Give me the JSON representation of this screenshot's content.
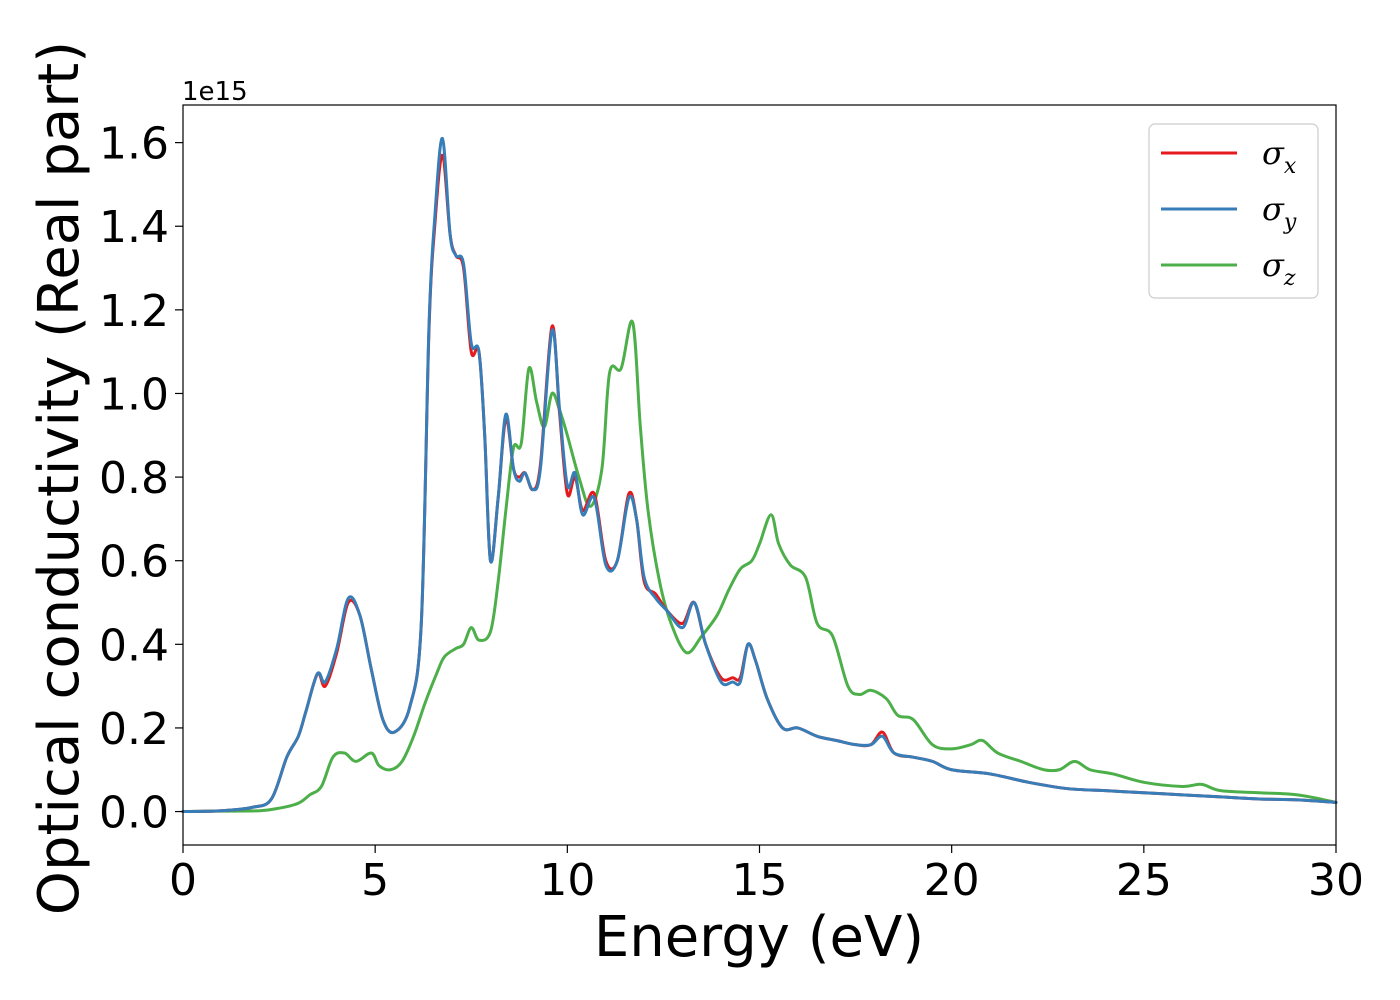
{
  "chart_data": {
    "type": "line",
    "xlabel": "Energy (eV)",
    "ylabel": "Optical conductivity (Real part)",
    "y_offset_label": "1e15",
    "xlim": [
      0,
      30
    ],
    "ylim": [
      -0.08,
      1.69
    ],
    "xticks": [
      0,
      5,
      10,
      15,
      20,
      25,
      30
    ],
    "xtick_labels": [
      "0",
      "5",
      "10",
      "15",
      "20",
      "25",
      "30"
    ],
    "yticks": [
      0.0,
      0.2,
      0.4,
      0.6,
      0.8,
      1.0,
      1.2,
      1.4,
      1.6
    ],
    "ytick_labels": [
      "0.0",
      "0.2",
      "0.4",
      "0.6",
      "0.8",
      "1.0",
      "1.2",
      "1.4",
      "1.6"
    ],
    "grid": false,
    "legend_position": "top-right",
    "series": [
      {
        "name": "σ_x",
        "symbol": "σ",
        "subscript": "x",
        "color": "#e41a1c",
        "points": [
          [
            0,
            0
          ],
          [
            1,
            0.002
          ],
          [
            1.8,
            0.01
          ],
          [
            2.3,
            0.03
          ],
          [
            2.7,
            0.13
          ],
          [
            3.0,
            0.18
          ],
          [
            3.2,
            0.24
          ],
          [
            3.5,
            0.33
          ],
          [
            3.7,
            0.3
          ],
          [
            4.0,
            0.38
          ],
          [
            4.3,
            0.5
          ],
          [
            4.6,
            0.47
          ],
          [
            4.9,
            0.34
          ],
          [
            5.2,
            0.22
          ],
          [
            5.5,
            0.19
          ],
          [
            5.9,
            0.25
          ],
          [
            6.2,
            0.45
          ],
          [
            6.4,
            1.15
          ],
          [
            6.55,
            1.4
          ],
          [
            6.75,
            1.57
          ],
          [
            6.95,
            1.38
          ],
          [
            7.1,
            1.33
          ],
          [
            7.3,
            1.3
          ],
          [
            7.5,
            1.1
          ],
          [
            7.7,
            1.1
          ],
          [
            7.85,
            0.9
          ],
          [
            8.0,
            0.6
          ],
          [
            8.2,
            0.75
          ],
          [
            8.4,
            0.94
          ],
          [
            8.6,
            0.82
          ],
          [
            8.75,
            0.8
          ],
          [
            8.9,
            0.81
          ],
          [
            9.1,
            0.77
          ],
          [
            9.3,
            0.83
          ],
          [
            9.6,
            1.16
          ],
          [
            9.8,
            0.95
          ],
          [
            10.0,
            0.76
          ],
          [
            10.2,
            0.8
          ],
          [
            10.4,
            0.72
          ],
          [
            10.7,
            0.76
          ],
          [
            11.0,
            0.6
          ],
          [
            11.3,
            0.6
          ],
          [
            11.6,
            0.76
          ],
          [
            11.8,
            0.7
          ],
          [
            12.0,
            0.55
          ],
          [
            12.3,
            0.52
          ],
          [
            12.6,
            0.48
          ],
          [
            13.0,
            0.45
          ],
          [
            13.3,
            0.5
          ],
          [
            13.6,
            0.4
          ],
          [
            14.0,
            0.32
          ],
          [
            14.3,
            0.32
          ],
          [
            14.5,
            0.32
          ],
          [
            14.7,
            0.4
          ],
          [
            14.9,
            0.36
          ],
          [
            15.2,
            0.27
          ],
          [
            15.6,
            0.2
          ],
          [
            16.0,
            0.2
          ],
          [
            16.5,
            0.18
          ],
          [
            17.0,
            0.17
          ],
          [
            17.5,
            0.16
          ],
          [
            17.9,
            0.16
          ],
          [
            18.2,
            0.19
          ],
          [
            18.5,
            0.14
          ],
          [
            19.0,
            0.13
          ],
          [
            19.5,
            0.12
          ],
          [
            20.0,
            0.1
          ],
          [
            21.0,
            0.09
          ],
          [
            22.0,
            0.07
          ],
          [
            23.0,
            0.055
          ],
          [
            24.0,
            0.05
          ],
          [
            25.0,
            0.045
          ],
          [
            26.0,
            0.04
          ],
          [
            27.0,
            0.035
          ],
          [
            28.0,
            0.03
          ],
          [
            29.0,
            0.028
          ],
          [
            30.0,
            0.022
          ]
        ]
      },
      {
        "name": "σ_y",
        "symbol": "σ",
        "subscript": "y",
        "color": "#377eb8",
        "points": [
          [
            0,
            0
          ],
          [
            1,
            0.002
          ],
          [
            1.8,
            0.01
          ],
          [
            2.3,
            0.03
          ],
          [
            2.7,
            0.13
          ],
          [
            3.0,
            0.18
          ],
          [
            3.2,
            0.24
          ],
          [
            3.5,
            0.33
          ],
          [
            3.7,
            0.31
          ],
          [
            4.0,
            0.39
          ],
          [
            4.3,
            0.51
          ],
          [
            4.6,
            0.47
          ],
          [
            4.9,
            0.34
          ],
          [
            5.2,
            0.22
          ],
          [
            5.5,
            0.19
          ],
          [
            5.9,
            0.25
          ],
          [
            6.2,
            0.45
          ],
          [
            6.4,
            1.16
          ],
          [
            6.55,
            1.42
          ],
          [
            6.75,
            1.61
          ],
          [
            6.95,
            1.38
          ],
          [
            7.1,
            1.33
          ],
          [
            7.3,
            1.31
          ],
          [
            7.5,
            1.12
          ],
          [
            7.7,
            1.1
          ],
          [
            7.85,
            0.9
          ],
          [
            8.0,
            0.6
          ],
          [
            8.2,
            0.75
          ],
          [
            8.4,
            0.95
          ],
          [
            8.6,
            0.82
          ],
          [
            8.75,
            0.79
          ],
          [
            8.9,
            0.81
          ],
          [
            9.1,
            0.77
          ],
          [
            9.3,
            0.82
          ],
          [
            9.6,
            1.15
          ],
          [
            9.8,
            0.96
          ],
          [
            10.0,
            0.78
          ],
          [
            10.2,
            0.81
          ],
          [
            10.4,
            0.71
          ],
          [
            10.7,
            0.75
          ],
          [
            11.0,
            0.59
          ],
          [
            11.3,
            0.6
          ],
          [
            11.6,
            0.75
          ],
          [
            11.8,
            0.7
          ],
          [
            12.0,
            0.56
          ],
          [
            12.3,
            0.51
          ],
          [
            12.6,
            0.48
          ],
          [
            13.0,
            0.44
          ],
          [
            13.3,
            0.5
          ],
          [
            13.6,
            0.4
          ],
          [
            14.0,
            0.31
          ],
          [
            14.3,
            0.31
          ],
          [
            14.5,
            0.31
          ],
          [
            14.7,
            0.4
          ],
          [
            14.9,
            0.36
          ],
          [
            15.2,
            0.27
          ],
          [
            15.6,
            0.2
          ],
          [
            16.0,
            0.2
          ],
          [
            16.5,
            0.18
          ],
          [
            17.0,
            0.17
          ],
          [
            17.5,
            0.16
          ],
          [
            17.9,
            0.16
          ],
          [
            18.2,
            0.18
          ],
          [
            18.5,
            0.14
          ],
          [
            19.0,
            0.13
          ],
          [
            19.5,
            0.12
          ],
          [
            20.0,
            0.1
          ],
          [
            21.0,
            0.09
          ],
          [
            22.0,
            0.07
          ],
          [
            23.0,
            0.055
          ],
          [
            24.0,
            0.05
          ],
          [
            25.0,
            0.045
          ],
          [
            26.0,
            0.04
          ],
          [
            27.0,
            0.035
          ],
          [
            28.0,
            0.03
          ],
          [
            29.0,
            0.028
          ],
          [
            30.0,
            0.022
          ]
        ]
      },
      {
        "name": "σ_z",
        "symbol": "σ",
        "subscript": "z",
        "color": "#4daf4a",
        "points": [
          [
            0,
            0
          ],
          [
            1,
            0.001
          ],
          [
            2.0,
            0.002
          ],
          [
            2.5,
            0.008
          ],
          [
            3.0,
            0.02
          ],
          [
            3.3,
            0.04
          ],
          [
            3.6,
            0.06
          ],
          [
            3.9,
            0.13
          ],
          [
            4.2,
            0.14
          ],
          [
            4.5,
            0.12
          ],
          [
            4.9,
            0.14
          ],
          [
            5.1,
            0.11
          ],
          [
            5.4,
            0.1
          ],
          [
            5.7,
            0.12
          ],
          [
            6.0,
            0.18
          ],
          [
            6.3,
            0.26
          ],
          [
            6.6,
            0.33
          ],
          [
            6.8,
            0.37
          ],
          [
            7.1,
            0.39
          ],
          [
            7.3,
            0.4
          ],
          [
            7.5,
            0.44
          ],
          [
            7.7,
            0.41
          ],
          [
            8.0,
            0.43
          ],
          [
            8.2,
            0.55
          ],
          [
            8.4,
            0.72
          ],
          [
            8.6,
            0.87
          ],
          [
            8.8,
            0.88
          ],
          [
            9.0,
            1.06
          ],
          [
            9.2,
            0.98
          ],
          [
            9.4,
            0.92
          ],
          [
            9.6,
            1.0
          ],
          [
            9.8,
            0.96
          ],
          [
            10.0,
            0.9
          ],
          [
            10.3,
            0.8
          ],
          [
            10.6,
            0.73
          ],
          [
            10.9,
            0.82
          ],
          [
            11.1,
            1.05
          ],
          [
            11.4,
            1.06
          ],
          [
            11.7,
            1.17
          ],
          [
            11.9,
            0.92
          ],
          [
            12.1,
            0.72
          ],
          [
            12.4,
            0.55
          ],
          [
            12.7,
            0.45
          ],
          [
            13.1,
            0.38
          ],
          [
            13.5,
            0.42
          ],
          [
            13.9,
            0.47
          ],
          [
            14.2,
            0.53
          ],
          [
            14.5,
            0.58
          ],
          [
            14.8,
            0.6
          ],
          [
            15.0,
            0.64
          ],
          [
            15.3,
            0.71
          ],
          [
            15.5,
            0.64
          ],
          [
            15.8,
            0.59
          ],
          [
            16.2,
            0.56
          ],
          [
            16.5,
            0.45
          ],
          [
            16.9,
            0.42
          ],
          [
            17.3,
            0.3
          ],
          [
            17.6,
            0.28
          ],
          [
            17.9,
            0.29
          ],
          [
            18.3,
            0.27
          ],
          [
            18.6,
            0.23
          ],
          [
            19.0,
            0.22
          ],
          [
            19.5,
            0.16
          ],
          [
            20.0,
            0.15
          ],
          [
            20.5,
            0.16
          ],
          [
            20.8,
            0.17
          ],
          [
            21.2,
            0.14
          ],
          [
            21.8,
            0.12
          ],
          [
            22.4,
            0.1
          ],
          [
            22.8,
            0.1
          ],
          [
            23.2,
            0.12
          ],
          [
            23.6,
            0.1
          ],
          [
            24.2,
            0.09
          ],
          [
            25.0,
            0.07
          ],
          [
            26.0,
            0.06
          ],
          [
            26.5,
            0.065
          ],
          [
            27.0,
            0.05
          ],
          [
            28.0,
            0.045
          ],
          [
            29.0,
            0.04
          ],
          [
            30.0,
            0.022
          ]
        ]
      }
    ]
  }
}
